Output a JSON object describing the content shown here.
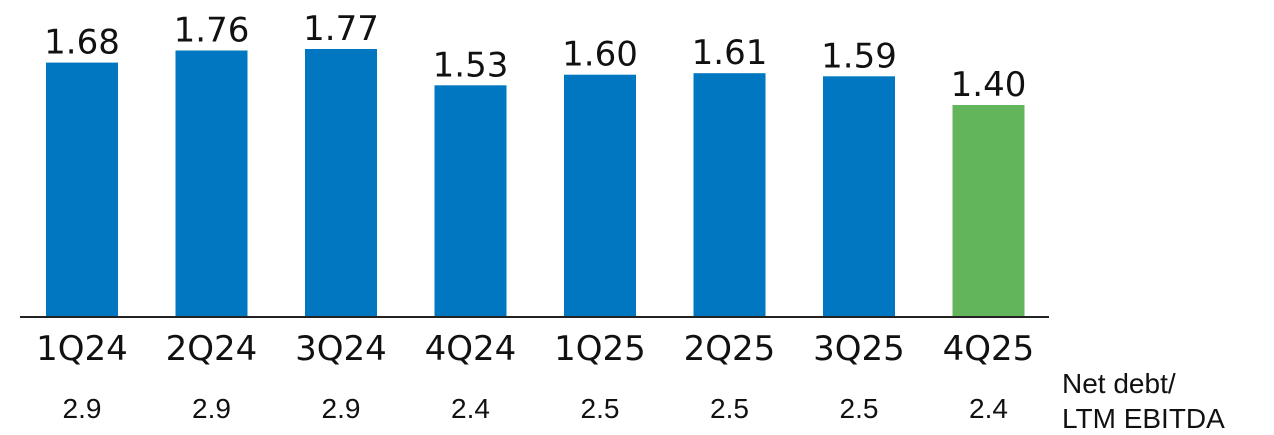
{
  "chart_data": {
    "type": "bar",
    "categories": [
      "1Q24",
      "2Q24",
      "3Q24",
      "4Q24",
      "1Q25",
      "2Q25",
      "3Q25",
      "4Q25"
    ],
    "values": [
      1.68,
      1.76,
      1.77,
      1.53,
      1.6,
      1.61,
      1.59,
      1.4
    ],
    "value_labels": [
      "1.68",
      "1.76",
      "1.77",
      "1.53",
      "1.60",
      "1.61",
      "1.59",
      "1.40"
    ],
    "secondary_row": {
      "label_line1": "Net debt/",
      "label_line2": "LTM EBITDA",
      "values": [
        "2.9",
        "2.9",
        "2.9",
        "2.4",
        "2.5",
        "2.5",
        "2.5",
        "2.4"
      ]
    },
    "ylim": [
      0,
      1.8
    ],
    "grid": false,
    "colors": {
      "bar": "#0077C0",
      "highlight": "#63B55B",
      "axis": "#222222"
    },
    "highlight_index": 7
  }
}
